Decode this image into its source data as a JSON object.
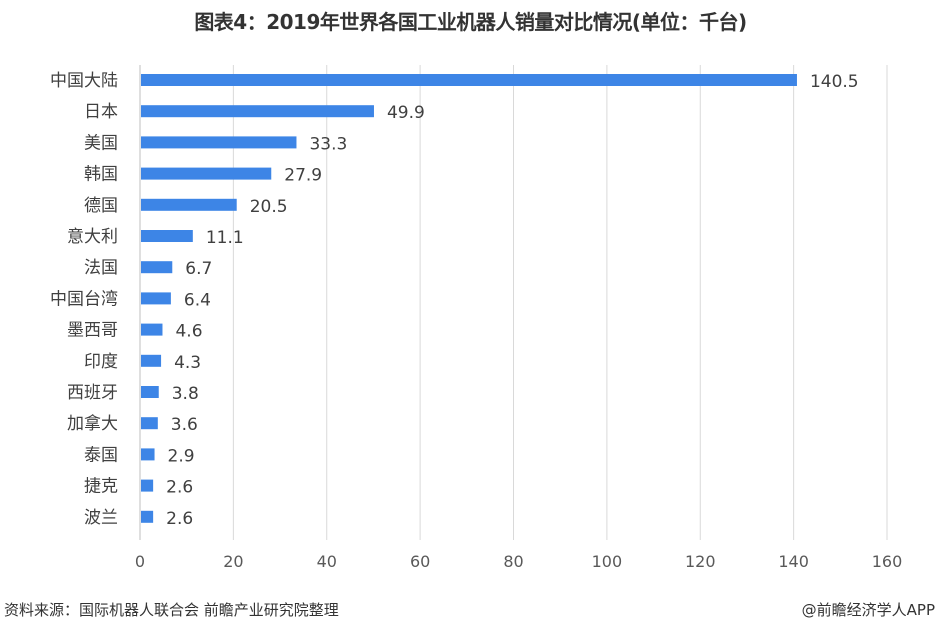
{
  "chart_data": {
    "type": "bar",
    "orientation": "horizontal",
    "title": "图表4：2019年世界各国工业机器人销量对比情况(单位：千台)",
    "categories": [
      "中国大陆",
      "日本",
      "美国",
      "韩国",
      "德国",
      "意大利",
      "法国",
      "中国台湾",
      "墨西哥",
      "印度",
      "西班牙",
      "加拿大",
      "泰国",
      "捷克",
      "波兰"
    ],
    "values": [
      140.5,
      49.9,
      33.3,
      27.9,
      20.5,
      11.1,
      6.7,
      6.4,
      4.6,
      4.3,
      3.8,
      3.6,
      2.9,
      2.6,
      2.6
    ],
    "value_labels": [
      "140.5",
      "49.9",
      "33.3",
      "27.9",
      "20.5",
      "11.1",
      "6.7",
      "6.4",
      "4.6",
      "4.3",
      "3.8",
      "3.6",
      "2.9",
      "2.6",
      "2.6"
    ],
    "xlim": [
      0,
      160
    ],
    "xticks": [
      "0",
      "20",
      "40",
      "60",
      "80",
      "100",
      "120",
      "140",
      "160"
    ],
    "xlabel": "",
    "ylabel": "",
    "grid": "vertical",
    "bar_color": "#3d85e6"
  },
  "footer": {
    "source": "资料来源：国际机器人联合会   前瞻产业研究院整理",
    "credit": "@前瞻经济学人APP"
  }
}
